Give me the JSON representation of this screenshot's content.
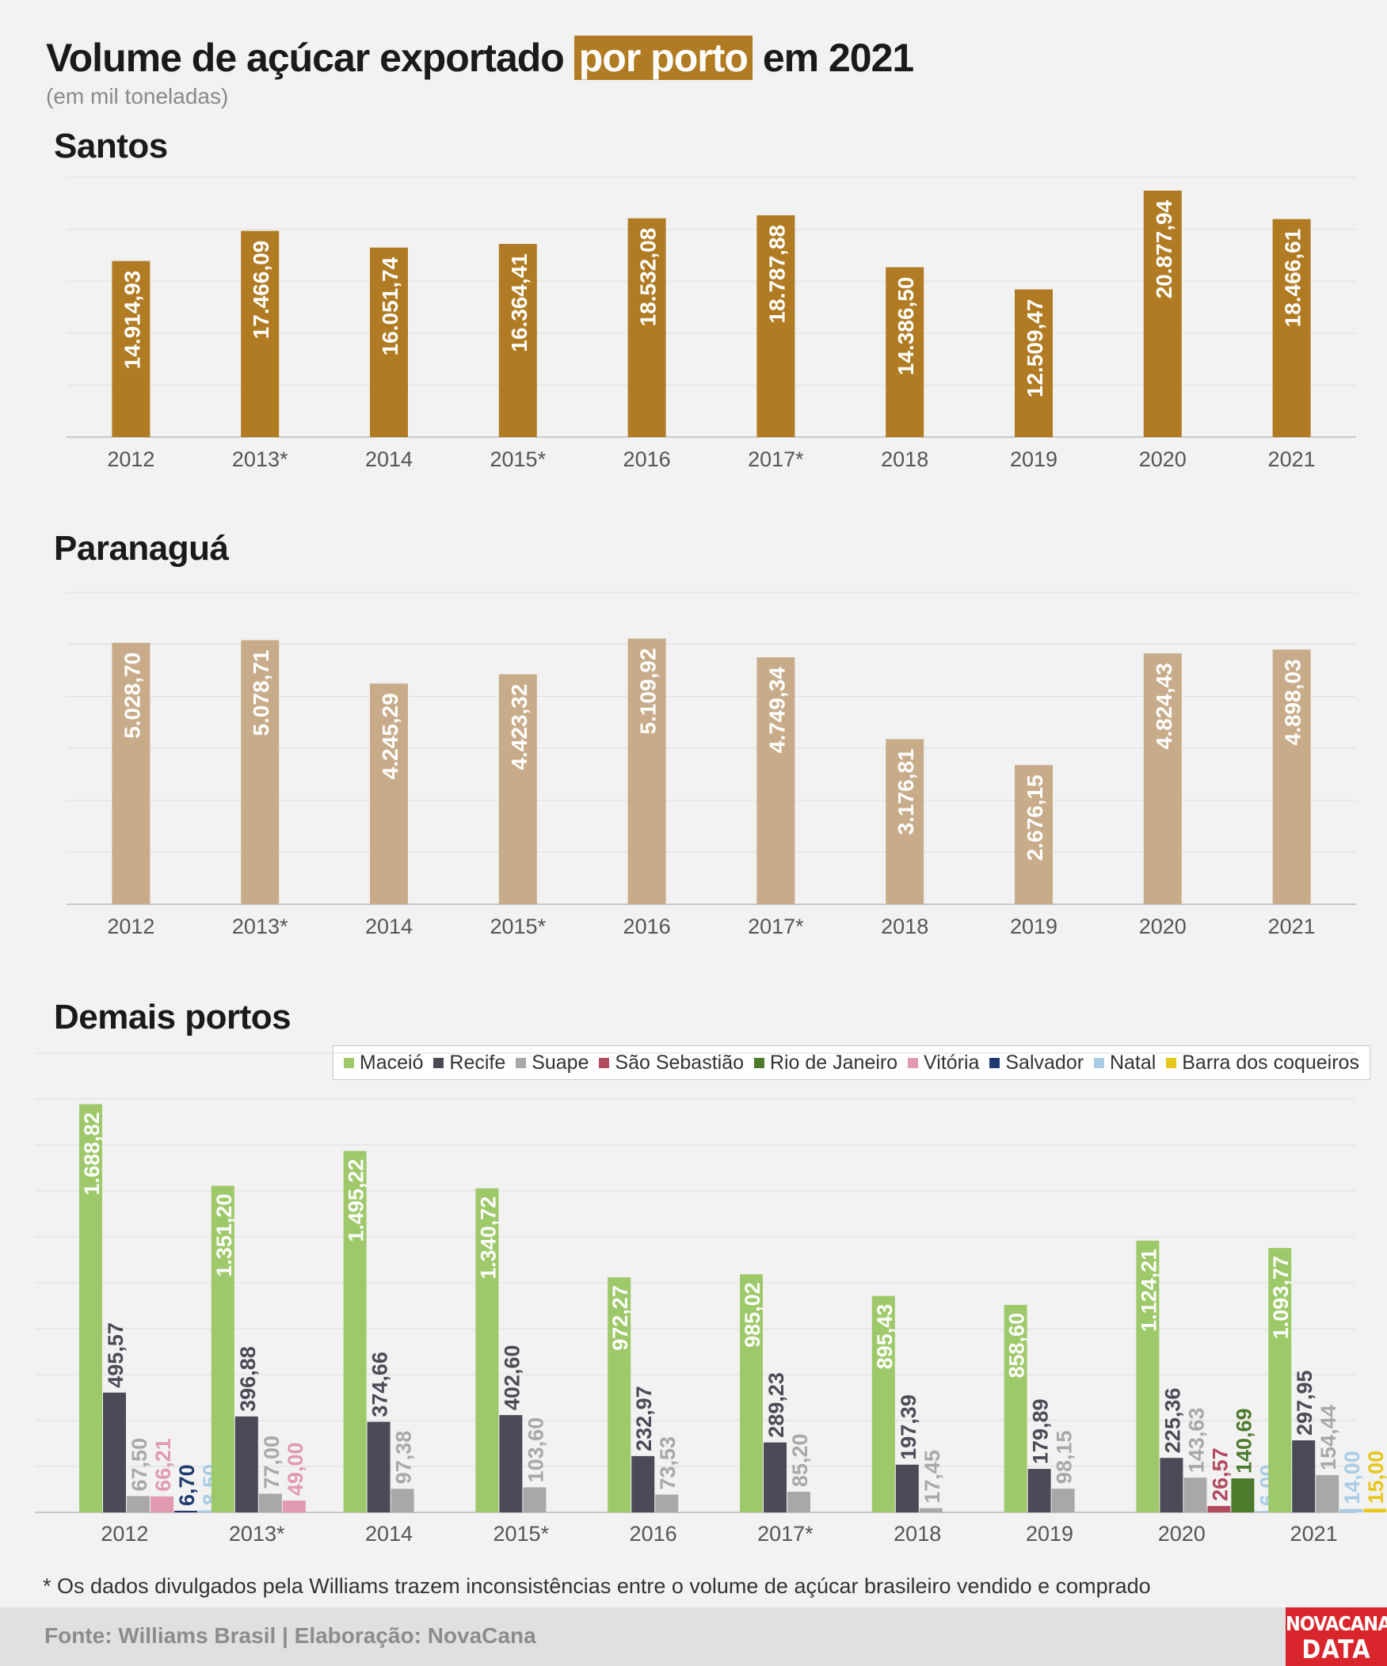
{
  "header": {
    "title_part1": "Volume de açúcar exportado",
    "title_highlight": "por porto",
    "title_part2": "em 2021",
    "subtitle": "(em mil toneladas)"
  },
  "sections": {
    "santos": "Santos",
    "paranagua": "Paranaguá",
    "demais": "Demais portos"
  },
  "chart_data": [
    {
      "type": "bar",
      "title": "Santos",
      "categories": [
        "2012",
        "2013*",
        "2014",
        "2015*",
        "2016",
        "2017*",
        "2018",
        "2019",
        "2020",
        "2021"
      ],
      "values": [
        14914.93,
        17466.09,
        16051.74,
        16364.41,
        18532.08,
        18787.88,
        14386.5,
        12509.47,
        20877.94,
        18466.61
      ],
      "labels": [
        "14.914,93",
        "17.466,09",
        "16.051,74",
        "16.364,41",
        "18.532,08",
        "18.787,88",
        "14.386,50",
        "12.509,47",
        "20.877,94",
        "18.466,61"
      ],
      "ylim": [
        0,
        22000
      ],
      "grid": true,
      "color": "#b07b22"
    },
    {
      "type": "bar",
      "title": "Paranaguá",
      "categories": [
        "2012",
        "2013*",
        "2014",
        "2015*",
        "2016",
        "2017*",
        "2018",
        "2019",
        "2020",
        "2021"
      ],
      "values": [
        5028.7,
        5078.71,
        4245.29,
        4423.32,
        5109.92,
        4749.34,
        3176.81,
        2676.15,
        4824.43,
        4898.03
      ],
      "labels": [
        "5.028,70",
        "5.078,71",
        "4.245,29",
        "4.423,32",
        "5.109,92",
        "4.749,34",
        "3.176,81",
        "2.676,15",
        "4.824,43",
        "4.898,03"
      ],
      "ylim": [
        0,
        6000
      ],
      "grid": true,
      "color": "#c8ac8a"
    },
    {
      "type": "bar",
      "title": "Demais portos",
      "categories": [
        "2012",
        "2013*",
        "2014",
        "2015*",
        "2016",
        "2017*",
        "2018",
        "2019",
        "2020",
        "2021"
      ],
      "ylim": [
        0,
        1900
      ],
      "grid": true,
      "legend": "top-right",
      "series": [
        {
          "name": "Maceió",
          "color": "#9ec96a",
          "values": [
            1688.82,
            1351.2,
            1495.22,
            1340.72,
            972.27,
            985.02,
            895.43,
            858.6,
            1124.21,
            1093.77
          ],
          "labels": [
            "1.688,82",
            "1.351,20",
            "1.495,22",
            "1.340,72",
            "972,27",
            "985,02",
            "895,43",
            "858,60",
            "1.124,21",
            "1.093,77"
          ]
        },
        {
          "name": "Recife",
          "color": "#4b4a57",
          "values": [
            495.57,
            396.88,
            374.66,
            402.6,
            232.97,
            289.23,
            197.39,
            179.89,
            225.36,
            297.95
          ],
          "labels": [
            "495,57",
            "396,88",
            "374,66",
            "402,60",
            "232,97",
            "289,23",
            "197,39",
            "179,89",
            "225,36",
            "297,95"
          ]
        },
        {
          "name": "Suape",
          "color": "#a8a8a8",
          "values": [
            67.5,
            77.0,
            97.38,
            103.6,
            73.53,
            85.2,
            17.45,
            98.15,
            143.63,
            154.44
          ],
          "labels": [
            "67,50",
            "77,00",
            "97,38",
            "103,60",
            "73,53",
            "85,20",
            "17,45",
            "98,15",
            "143,63",
            "154,44"
          ]
        },
        {
          "name": "São Sebastião",
          "color": "#b24a5e",
          "values": [
            null,
            null,
            null,
            null,
            null,
            null,
            null,
            null,
            26.57,
            null
          ],
          "labels": [
            "",
            "",
            "",
            "",
            "",
            "",
            "",
            "",
            "26,57",
            ""
          ]
        },
        {
          "name": "Rio de Janeiro",
          "color": "#4d7a2b",
          "values": [
            null,
            null,
            null,
            null,
            null,
            null,
            null,
            null,
            140.69,
            null
          ],
          "labels": [
            "",
            "",
            "",
            "",
            "",
            "",
            "",
            "",
            "140,69",
            ""
          ]
        },
        {
          "name": "Vitória",
          "color": "#e29ab0",
          "values": [
            66.21,
            49.0,
            null,
            null,
            null,
            null,
            null,
            null,
            null,
            null
          ],
          "labels": [
            "66,21",
            "49,00",
            "",
            "",
            "",
            "",
            "",
            "",
            "",
            ""
          ]
        },
        {
          "name": "Salvador",
          "color": "#1f3a6e",
          "values": [
            6.7,
            null,
            null,
            null,
            null,
            null,
            null,
            null,
            null,
            null
          ],
          "labels": [
            "6,70",
            "",
            "",
            "",
            "",
            "",
            "",
            "",
            "",
            ""
          ]
        },
        {
          "name": "Natal",
          "color": "#a9cce6",
          "values": [
            8.5,
            null,
            null,
            null,
            null,
            null,
            null,
            null,
            6.0,
            14.0
          ],
          "labels": [
            "8,50",
            "",
            "",
            "",
            "",
            "",
            "",
            "",
            "6,00",
            "14,00"
          ]
        },
        {
          "name": "Barra dos coqueiros",
          "color": "#e6c619",
          "values": [
            null,
            null,
            null,
            null,
            null,
            null,
            null,
            null,
            null,
            15.0
          ],
          "labels": [
            "",
            "",
            "",
            "",
            "",
            "",
            "",
            "",
            "",
            "15,00"
          ]
        }
      ]
    }
  ],
  "footnote": "* Os dados divulgados pela Williams trazem inconsistências entre o volume de açúcar brasileiro vendido e comprado",
  "footer": {
    "source": "Fonte: Williams Brasil | Elaboração: NovaCana",
    "logo_line1": "NOVACANA",
    "logo_line2": "DATA"
  }
}
